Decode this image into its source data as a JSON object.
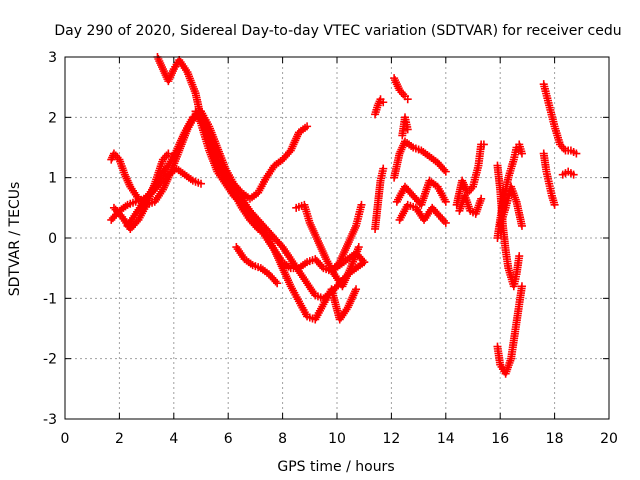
{
  "chart_data": {
    "type": "scatter",
    "title": "Day 290 of 2020, Sidereal Day-to-day VTEC variation (SDTVAR) for receiver cedu",
    "xlabel": "GPS time / hours",
    "ylabel": "SDTVAR / TECUs",
    "xlim": [
      0,
      20
    ],
    "ylim": [
      -3,
      3
    ],
    "xticks": [
      "0",
      "2",
      "4",
      "6",
      "8",
      "10",
      "12",
      "14",
      "16",
      "18",
      "20"
    ],
    "yticks": [
      "-3",
      "-2",
      "-1",
      "0",
      "1",
      "2",
      "3"
    ],
    "grid": true,
    "marker": "+",
    "colors": {
      "series": "#ff0000",
      "grid": "#a0a0a0",
      "axes": "#000000"
    },
    "series": [
      {
        "x": [
          1.7,
          2.0,
          2.3,
          2.6,
          2.9,
          3.2,
          3.5,
          3.8,
          4.1,
          4.4,
          4.7,
          5.0
        ],
        "y": [
          0.3,
          0.45,
          0.55,
          0.6,
          0.65,
          0.75,
          0.9,
          1.05,
          1.15,
          1.05,
          0.95,
          0.9
        ]
      },
      {
        "x": [
          1.7,
          1.8,
          2.0,
          2.2,
          2.4,
          2.7,
          3.0,
          3.3,
          3.6,
          3.9,
          4.2,
          4.5,
          4.8,
          5.0,
          5.3,
          5.6,
          5.9,
          6.2,
          6.5,
          6.8,
          7.1,
          7.4,
          7.7,
          8.0,
          8.3,
          8.6,
          8.9
        ],
        "y": [
          1.3,
          1.4,
          1.3,
          1.05,
          0.85,
          0.65,
          0.55,
          0.6,
          0.8,
          1.1,
          1.45,
          1.8,
          2.05,
          2.1,
          1.85,
          1.5,
          1.15,
          0.9,
          0.75,
          0.65,
          0.75,
          1.0,
          1.2,
          1.3,
          1.45,
          1.75,
          1.85
        ]
      },
      {
        "x": [
          2.3,
          2.6,
          2.9,
          3.2,
          3.5,
          3.8,
          4.1,
          4.4,
          4.7,
          5.0,
          5.3,
          5.6,
          5.9,
          6.2,
          6.5,
          6.8,
          7.1,
          7.4,
          7.7,
          8.0,
          8.3,
          8.6,
          8.9,
          9.2,
          9.5,
          9.8,
          10.1,
          10.4,
          10.7,
          11.0
        ],
        "y": [
          0.2,
          0.4,
          0.6,
          0.8,
          1.0,
          1.2,
          1.45,
          1.75,
          2.0,
          2.05,
          1.75,
          1.3,
          1.0,
          0.85,
          0.65,
          0.45,
          0.2,
          0.0,
          -0.2,
          -0.4,
          -0.5,
          -0.5,
          -0.4,
          -0.35,
          -0.5,
          -0.55,
          -0.45,
          -0.35,
          -0.25,
          -0.4
        ]
      },
      {
        "x": [
          4.8,
          5.0,
          5.3,
          5.6,
          5.9,
          6.2,
          6.5,
          6.8,
          7.1,
          7.4,
          7.7,
          8.0,
          8.3,
          8.6,
          8.9,
          9.2,
          9.5,
          9.8,
          10.1,
          10.4,
          10.7,
          11.0
        ],
        "y": [
          2.1,
          1.9,
          1.45,
          1.1,
          0.9,
          0.7,
          0.55,
          0.45,
          0.3,
          0.15,
          0.0,
          -0.15,
          -0.35,
          -0.55,
          -0.75,
          -0.95,
          -1.0,
          -0.9,
          -0.75,
          -0.6,
          -0.5,
          -0.4
        ]
      },
      {
        "x": [
          3.4,
          3.6,
          3.8,
          4.0,
          4.2,
          4.5,
          4.8,
          5.0,
          5.3,
          5.6,
          5.9,
          6.2,
          6.5,
          6.8,
          7.1,
          7.4,
          7.7,
          8.0,
          8.3,
          8.6,
          8.9,
          9.2,
          9.5,
          9.8,
          10.1,
          10.4,
          10.7
        ],
        "y": [
          3.0,
          2.8,
          2.6,
          2.8,
          2.95,
          2.75,
          2.4,
          2.0,
          1.6,
          1.25,
          1.0,
          0.75,
          0.5,
          0.3,
          0.15,
          0.05,
          -0.2,
          -0.5,
          -0.8,
          -1.05,
          -1.3,
          -1.35,
          -1.1,
          -0.85,
          -1.35,
          -1.15,
          -0.85
        ]
      },
      {
        "x": [
          6.3,
          6.6,
          6.9,
          7.2,
          7.5,
          7.8
        ],
        "y": [
          -0.15,
          -0.35,
          -0.45,
          -0.5,
          -0.6,
          -0.75
        ]
      },
      {
        "x": [
          1.8,
          2.1,
          2.4,
          2.7,
          3.0,
          3.3,
          3.6,
          3.8
        ],
        "y": [
          0.5,
          0.35,
          0.15,
          0.3,
          0.55,
          0.9,
          1.3,
          1.4
        ]
      },
      {
        "x": [
          8.5,
          8.8,
          9.0,
          9.3,
          9.6,
          9.9,
          10.2,
          10.5,
          10.8
        ],
        "y": [
          0.5,
          0.55,
          0.25,
          -0.05,
          -0.35,
          -0.6,
          -0.8,
          -0.5,
          -0.15
        ]
      },
      {
        "x": [
          9.8,
          10.1,
          10.4,
          10.7,
          10.9
        ],
        "y": [
          -0.55,
          -0.4,
          -0.1,
          0.2,
          0.55
        ]
      },
      {
        "x": [
          11.4,
          11.5,
          11.6,
          11.7
        ],
        "y": [
          2.05,
          2.2,
          2.3,
          2.25
        ]
      },
      {
        "x": [
          11.4,
          11.5,
          11.6,
          11.7
        ],
        "y": [
          0.15,
          0.55,
          0.95,
          1.15
        ]
      },
      {
        "x": [
          12.1,
          12.2,
          12.3,
          12.5,
          12.6
        ],
        "y": [
          2.65,
          2.55,
          2.45,
          2.35,
          2.3
        ]
      },
      {
        "x": [
          12.1,
          12.3,
          12.5,
          12.8,
          13.1,
          13.4,
          13.7,
          14.0
        ],
        "y": [
          1.0,
          1.4,
          1.6,
          1.5,
          1.45,
          1.35,
          1.25,
          1.1
        ]
      },
      {
        "x": [
          12.2,
          12.5,
          12.8,
          13.1,
          13.4,
          13.7,
          14.0
        ],
        "y": [
          0.6,
          0.85,
          0.7,
          0.55,
          0.95,
          0.85,
          0.6
        ]
      },
      {
        "x": [
          12.3,
          12.6,
          12.9,
          13.2,
          13.5,
          13.8,
          14.0
        ],
        "y": [
          0.3,
          0.55,
          0.5,
          0.3,
          0.5,
          0.35,
          0.25
        ]
      },
      {
        "x": [
          12.4,
          12.5,
          12.6
        ],
        "y": [
          1.7,
          2.0,
          1.8
        ]
      },
      {
        "x": [
          14.4,
          14.6,
          14.8,
          15.0,
          15.2,
          15.3,
          15.4
        ],
        "y": [
          0.55,
          0.95,
          0.75,
          0.85,
          1.2,
          1.55,
          1.55
        ]
      },
      {
        "x": [
          14.5,
          14.7,
          14.9,
          15.1,
          15.3
        ],
        "y": [
          0.45,
          0.7,
          0.45,
          0.4,
          0.65
        ]
      },
      {
        "x": [
          15.9,
          16.0,
          16.1,
          16.2,
          16.3,
          16.5,
          16.6,
          16.7
        ],
        "y": [
          1.2,
          0.8,
          0.2,
          -0.2,
          -0.5,
          -0.8,
          -0.6,
          -0.3
        ]
      },
      {
        "x": [
          15.9,
          16.0,
          16.1,
          16.3,
          16.5,
          16.6,
          16.7,
          16.8
        ],
        "y": [
          0.0,
          0.3,
          0.6,
          1.0,
          1.3,
          1.5,
          1.55,
          1.4
        ]
      },
      {
        "x": [
          16.0,
          16.2,
          16.4,
          16.6,
          16.8
        ],
        "y": [
          0.2,
          0.5,
          0.85,
          0.6,
          0.2
        ]
      },
      {
        "x": [
          15.9,
          16.0,
          16.2,
          16.4,
          16.6,
          16.8
        ],
        "y": [
          -1.8,
          -2.1,
          -2.25,
          -2.0,
          -1.4,
          -0.8
        ]
      },
      {
        "x": [
          17.6,
          17.8,
          18.0,
          18.2,
          18.4,
          18.6,
          18.8
        ],
        "y": [
          2.55,
          2.2,
          1.85,
          1.55,
          1.45,
          1.45,
          1.4
        ]
      },
      {
        "x": [
          17.6,
          17.7,
          17.8,
          17.9,
          18.0
        ],
        "y": [
          1.4,
          1.1,
          0.9,
          0.7,
          0.55
        ]
      },
      {
        "x": [
          18.3,
          18.5,
          18.7
        ],
        "y": [
          1.05,
          1.1,
          1.05
        ]
      }
    ]
  }
}
